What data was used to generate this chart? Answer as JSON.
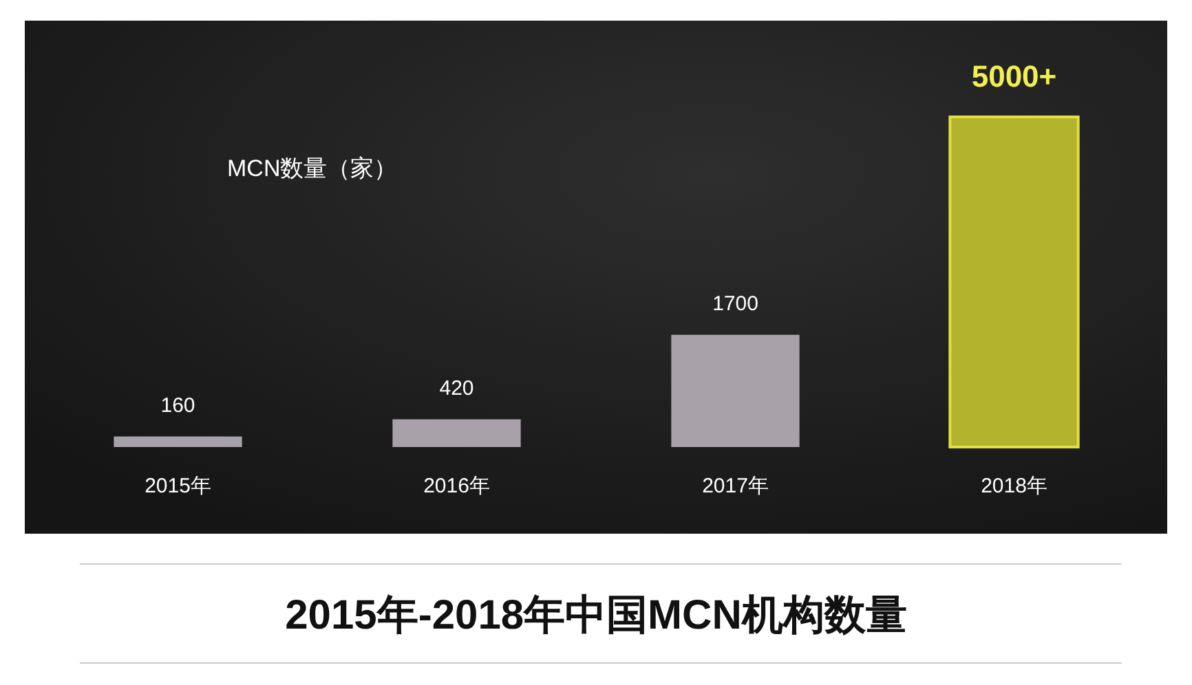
{
  "chart_data": {
    "type": "bar",
    "title": "2015年-2018年中国MCN机构数量",
    "ylabel": "MCN数量（家）",
    "categories": [
      "2015年",
      "2016年",
      "2017年",
      "2018年"
    ],
    "values": [
      160,
      420,
      1700,
      5000
    ],
    "colors": [
      "#a9a1a9",
      "#a9a1a9",
      "#a9a1a9",
      "#b3b32e"
    ],
    "value_labels": [
      "160",
      "420",
      "1700",
      "5000+"
    ]
  }
}
